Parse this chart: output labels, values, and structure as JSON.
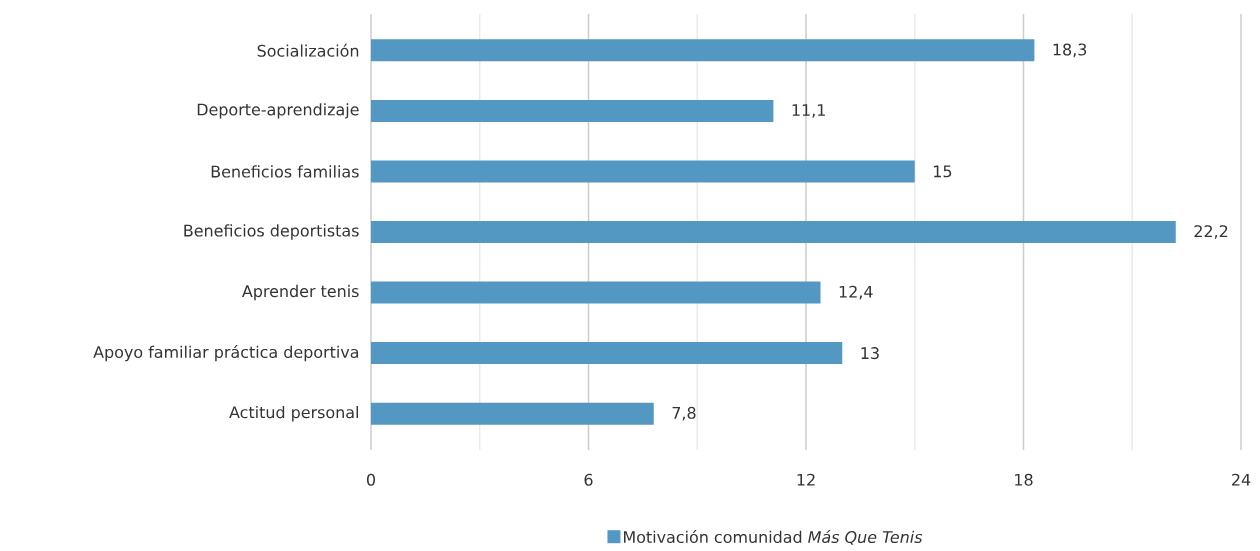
{
  "chart_data": {
    "type": "bar",
    "orientation": "horizontal",
    "categories": [
      "Socialización",
      "Deporte-aprendizaje",
      "Beneficios familias",
      "Beneficios deportistas",
      "Aprender tenis",
      "Apoyo familiar práctica deportiva",
      "Actitud personal"
    ],
    "series": [
      {
        "name": "Motivación comunidad *Más Que Tenis*",
        "color": "#5398c2",
        "values": [
          18.3,
          11.1,
          15,
          22.2,
          12.4,
          13,
          7.8
        ],
        "value_labels": [
          "18,3",
          "11,1",
          "15",
          "22,2",
          "12,4",
          "13",
          "7,8"
        ]
      }
    ],
    "xlim": [
      0,
      24
    ],
    "xticks": [
      0,
      {
        "value": 3,
        "label": null
      },
      6,
      {
        "value": 9,
        "label": null
      },
      12,
      {
        "value": 15,
        "label": null
      },
      18,
      {
        "value": 21,
        "label": null
      },
      24
    ],
    "grid": "x",
    "legend": "bottom"
  }
}
